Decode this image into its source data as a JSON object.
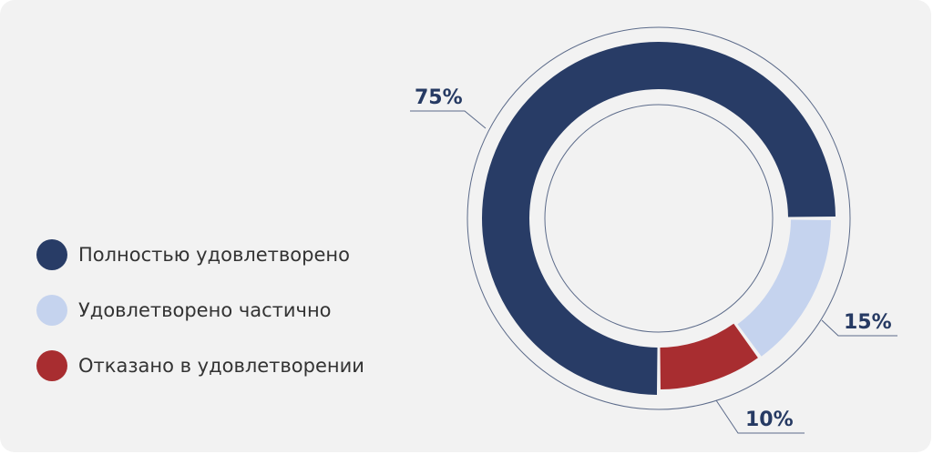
{
  "chart_data": {
    "type": "pie",
    "variant": "donut",
    "categories": [
      "Полностью удовлетворено",
      "Удовлетворено частично",
      "Отказано в удовлетворении"
    ],
    "values": [
      75,
      15,
      10
    ],
    "labels": [
      "75%",
      "15%",
      "10%"
    ],
    "colors": [
      "#283c66",
      "#c5d3ee",
      "#a82d30"
    ],
    "legend_position": "left",
    "title": ""
  }
}
